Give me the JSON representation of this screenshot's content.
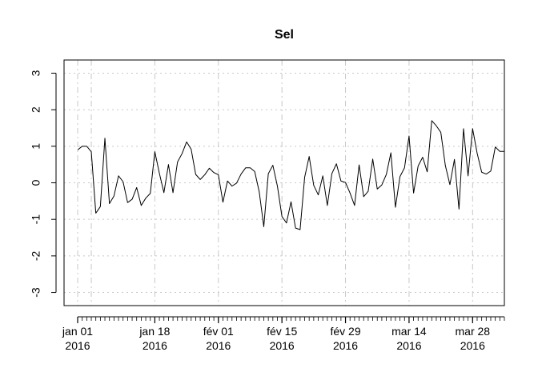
{
  "chart_data": {
    "type": "line",
    "title": "Sel",
    "xlabel": "",
    "ylabel": "",
    "ylim": [
      -3,
      3
    ],
    "y_ticks": [
      -3,
      -2,
      -1,
      0,
      1,
      2,
      3
    ],
    "grid": true,
    "legend": "none",
    "line_color": "#000000",
    "grid_color": "#c8c8c8",
    "x_range": [
      "2015-12-29",
      "2016-04-04"
    ],
    "x_tick_labels": [
      {
        "date": "2016-01-01",
        "line1": "jan 01",
        "line2": "2016"
      },
      {
        "date": "2016-01-18",
        "line1": "jan 18",
        "line2": "2016"
      },
      {
        "date": "2016-02-01",
        "line1": "fév 01",
        "line2": "2016"
      },
      {
        "date": "2016-02-15",
        "line1": "fév 15",
        "line2": "2016"
      },
      {
        "date": "2016-02-29",
        "line1": "fév 29",
        "line2": "2016"
      },
      {
        "date": "2016-03-14",
        "line1": "mar 14",
        "line2": "2016"
      },
      {
        "date": "2016-03-28",
        "line1": "mar 28",
        "line2": "2016"
      }
    ],
    "grid_dates": [
      "2015-12-29",
      "2016-01-01",
      "2016-01-04",
      "2016-01-18",
      "2016-02-01",
      "2016-02-15",
      "2016-02-29",
      "2016-03-14",
      "2016-03-28",
      "2016-04-04"
    ],
    "minor_ticks_every_days": 1,
    "series": [
      {
        "x": [
          "2016-01-01",
          "2016-01-02",
          "2016-01-03",
          "2016-01-04",
          "2016-01-05",
          "2016-01-06",
          "2016-01-07",
          "2016-01-08",
          "2016-01-09",
          "2016-01-10",
          "2016-01-11",
          "2016-01-12",
          "2016-01-13",
          "2016-01-14",
          "2016-01-15",
          "2016-01-16",
          "2016-01-17",
          "2016-01-18",
          "2016-01-19",
          "2016-01-20",
          "2016-01-21",
          "2016-01-22",
          "2016-01-23",
          "2016-01-24",
          "2016-01-25",
          "2016-01-26",
          "2016-01-27",
          "2016-01-28",
          "2016-01-29",
          "2016-01-30",
          "2016-01-31",
          "2016-02-01",
          "2016-02-02",
          "2016-02-03",
          "2016-02-04",
          "2016-02-05",
          "2016-02-06",
          "2016-02-07",
          "2016-02-08",
          "2016-02-09",
          "2016-02-10",
          "2016-02-11",
          "2016-02-12",
          "2016-02-13",
          "2016-02-14",
          "2016-02-15",
          "2016-02-16",
          "2016-02-17",
          "2016-02-18",
          "2016-02-19",
          "2016-02-20",
          "2016-02-21",
          "2016-02-22",
          "2016-02-23",
          "2016-02-24",
          "2016-02-25",
          "2016-02-26",
          "2016-02-27",
          "2016-02-28",
          "2016-02-29",
          "2016-03-01",
          "2016-03-02",
          "2016-03-03",
          "2016-03-04",
          "2016-03-05",
          "2016-03-06",
          "2016-03-07",
          "2016-03-08",
          "2016-03-09",
          "2016-03-10",
          "2016-03-11",
          "2016-03-12",
          "2016-03-13",
          "2016-03-14",
          "2016-03-15",
          "2016-03-16",
          "2016-03-17",
          "2016-03-18",
          "2016-03-19",
          "2016-03-20",
          "2016-03-21",
          "2016-03-22",
          "2016-03-23",
          "2016-03-24",
          "2016-03-25",
          "2016-03-26",
          "2016-03-27",
          "2016-03-28",
          "2016-03-29",
          "2016-03-30",
          "2016-03-31",
          "2016-04-01",
          "2016-04-02",
          "2016-04-03",
          "2016-04-04"
        ],
        "values": [
          0.9,
          1.0,
          1.0,
          0.85,
          -0.83,
          -0.65,
          1.22,
          -0.57,
          -0.36,
          0.19,
          0.03,
          -0.54,
          -0.45,
          -0.13,
          -0.62,
          -0.42,
          -0.29,
          0.85,
          0.26,
          -0.27,
          0.5,
          -0.27,
          0.57,
          0.8,
          1.12,
          0.92,
          0.23,
          0.09,
          0.22,
          0.4,
          0.28,
          0.22,
          -0.53,
          0.05,
          -0.09,
          -0.01,
          0.24,
          0.41,
          0.41,
          0.31,
          -0.25,
          -1.2,
          0.25,
          0.48,
          -0.09,
          -0.92,
          -1.1,
          -0.52,
          -1.24,
          -1.28,
          0.15,
          0.72,
          -0.07,
          -0.33,
          0.19,
          -0.62,
          0.25,
          0.52,
          0.05,
          0.01,
          -0.28,
          -0.62,
          0.49,
          -0.38,
          -0.23,
          0.65,
          -0.17,
          -0.06,
          0.23,
          0.82,
          -0.67,
          0.17,
          0.41,
          1.28,
          -0.28,
          0.46,
          0.7,
          0.3,
          1.7,
          1.56,
          1.38,
          0.47,
          -0.05,
          0.64,
          -0.72,
          1.48,
          0.19,
          1.48,
          0.81,
          0.29,
          0.24,
          0.32,
          0.98,
          0.86,
          0.86
        ]
      }
    ]
  }
}
